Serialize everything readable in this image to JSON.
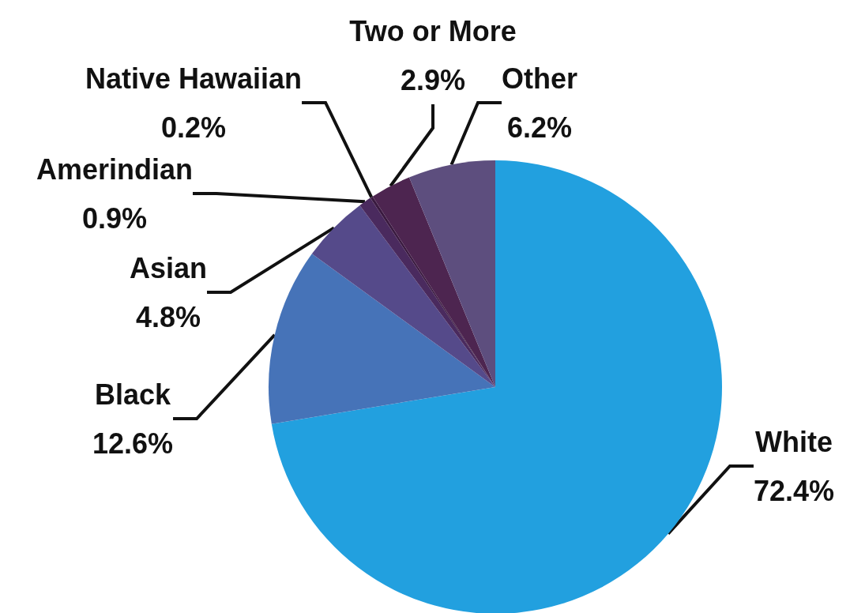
{
  "chart_data": {
    "type": "pie",
    "categories": [
      "White",
      "Black",
      "Asian",
      "Amerindian",
      "Native Hawaiian",
      "Two or More",
      "Other"
    ],
    "values": [
      72.4,
      12.6,
      4.8,
      0.9,
      0.2,
      2.9,
      6.2
    ],
    "value_labels": [
      "72.4%",
      "12.6%",
      "4.8%",
      "0.9%",
      "0.2%",
      "2.9%",
      "6.2%"
    ],
    "colors": [
      "#22a0df",
      "#4673b8",
      "#554a8a",
      "#4a2a5e",
      "#3a1a40",
      "#4d2550",
      "#5d4e7e"
    ],
    "legend": false
  }
}
